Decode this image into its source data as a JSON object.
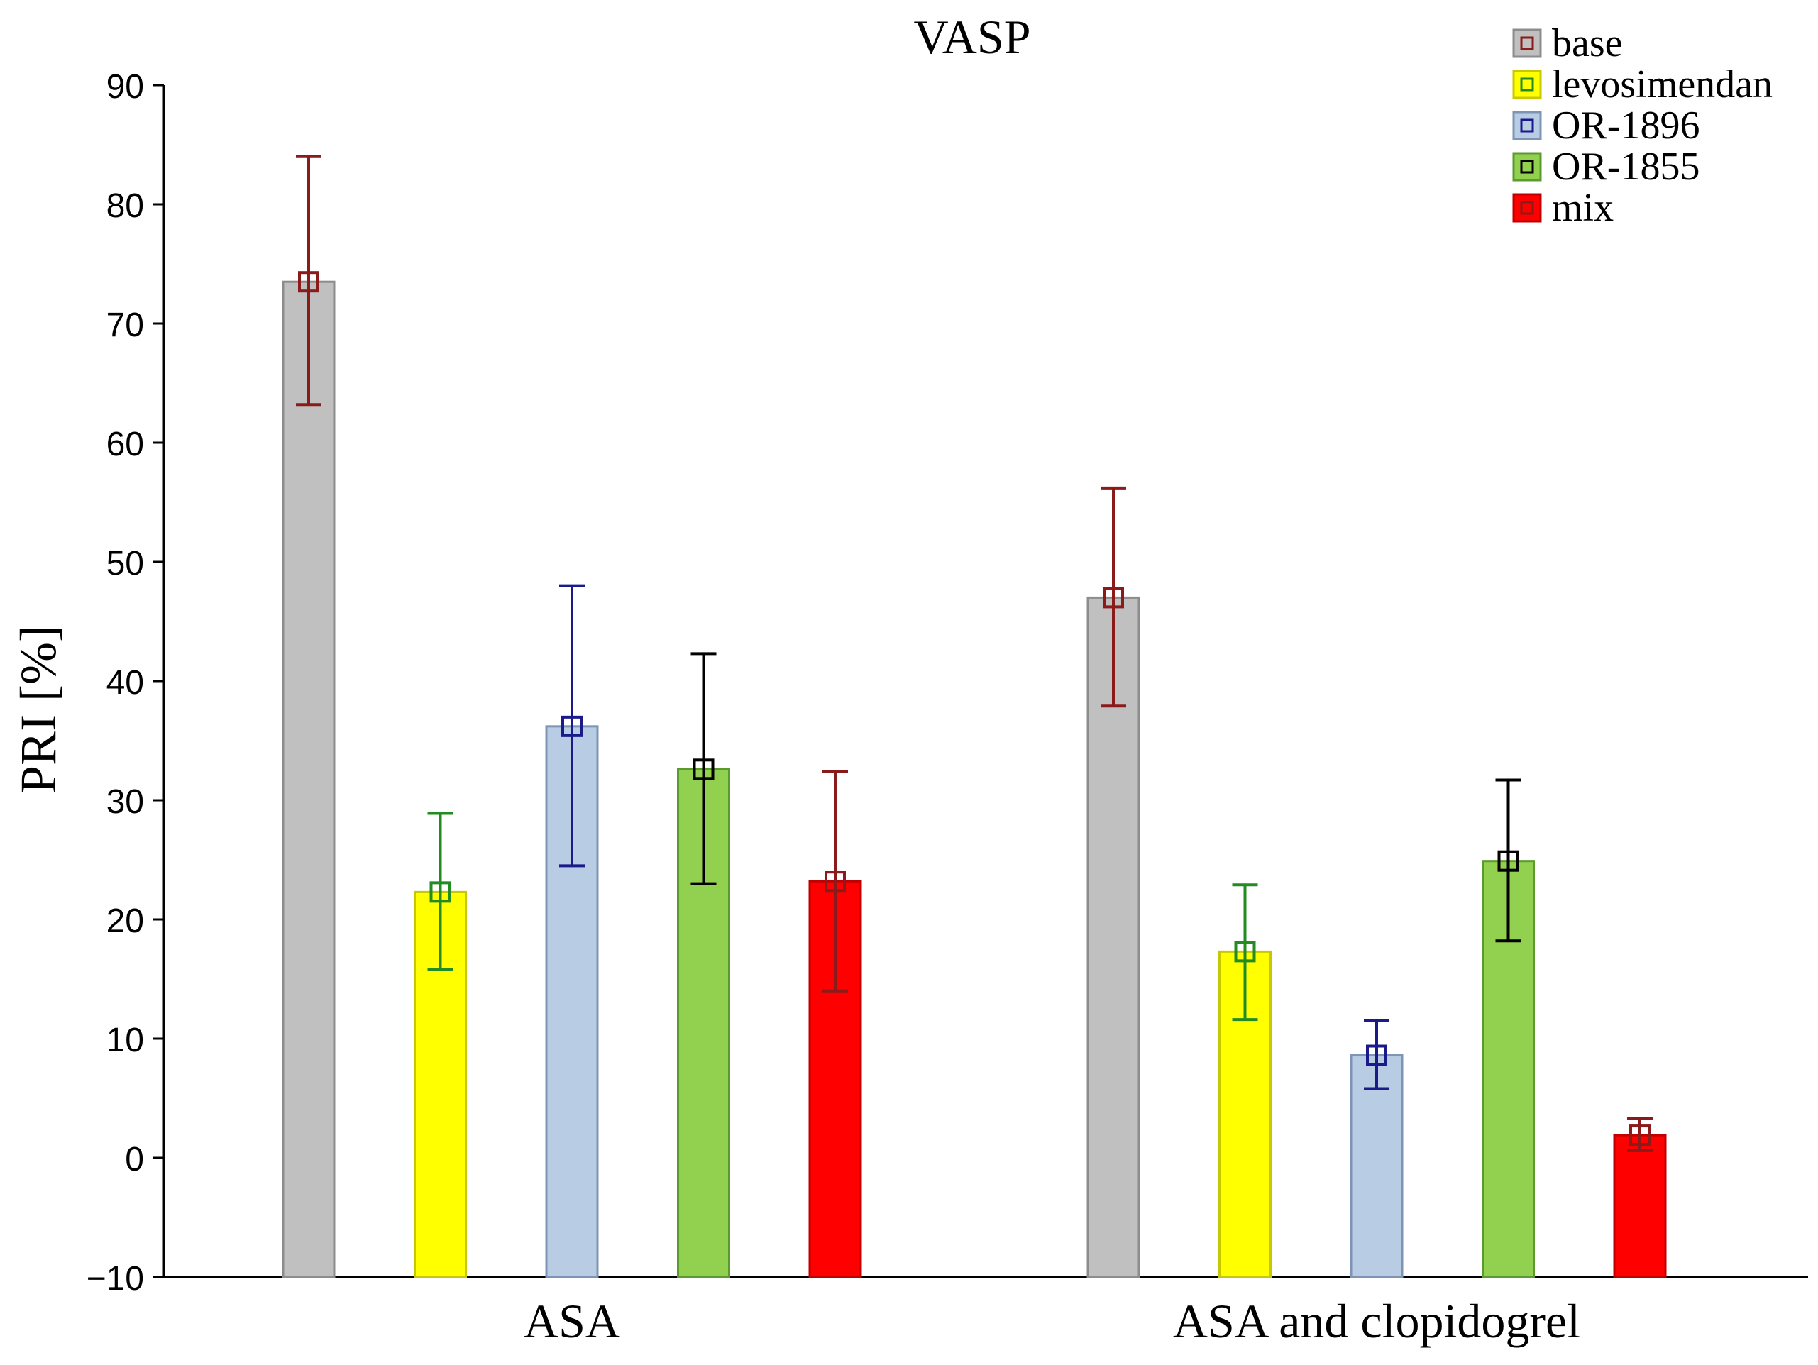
{
  "chart_data": {
    "type": "bar",
    "title": "VASP",
    "xlabel": "",
    "ylabel": "PRI [%]",
    "ylim": [
      -10,
      90
    ],
    "yticks": [
      -10,
      0,
      10,
      20,
      30,
      40,
      50,
      60,
      70,
      80,
      90
    ],
    "grid": false,
    "legend_position": "top-right",
    "categories": [
      "ASA",
      "ASA and clopidogrel"
    ],
    "series": [
      {
        "name": "base",
        "fill": "#c0c0c0",
        "stroke": "#8c8c8c",
        "marker": "#8b1a1a",
        "values": [
          73.5,
          47.0
        ],
        "err_low": [
          63.2,
          37.9
        ],
        "err_high": [
          84.0,
          56.2
        ]
      },
      {
        "name": "levosimendan",
        "fill": "#ffff00",
        "stroke": "#c8c800",
        "marker": "#228b22",
        "values": [
          22.3,
          17.3
        ],
        "err_low": [
          15.8,
          11.6
        ],
        "err_high": [
          28.9,
          22.9
        ]
      },
      {
        "name": "OR-1896",
        "fill": "#b8cce4",
        "stroke": "#7d94b5",
        "marker": "#1a1a8b",
        "values": [
          36.2,
          8.6
        ],
        "err_low": [
          24.5,
          5.8
        ],
        "err_high": [
          48.0,
          11.5
        ]
      },
      {
        "name": "OR-1855",
        "fill": "#92d050",
        "stroke": "#5a9a30",
        "marker": "#000000",
        "values": [
          32.6,
          24.9
        ],
        "err_low": [
          23.0,
          18.2
        ],
        "err_high": [
          42.3,
          31.7
        ]
      },
      {
        "name": "mix",
        "fill": "#ff0000",
        "stroke": "#c00000",
        "marker": "#8b1a1a",
        "values": [
          23.2,
          1.9
        ],
        "err_low": [
          14.0,
          0.6
        ],
        "err_high": [
          32.4,
          3.3
        ]
      }
    ]
  }
}
